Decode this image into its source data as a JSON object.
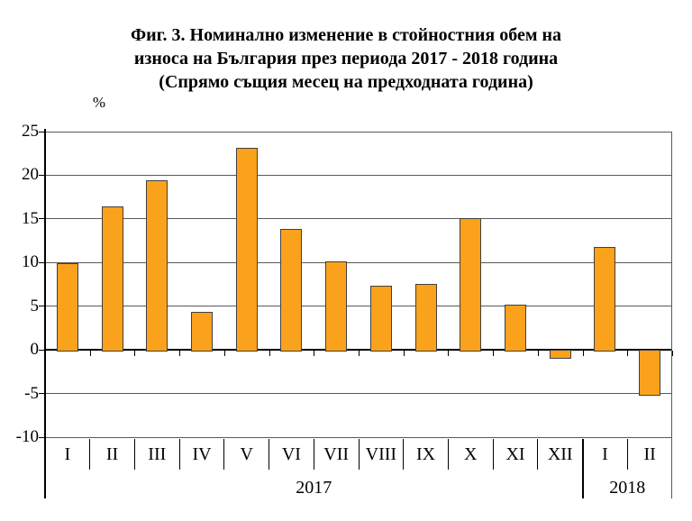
{
  "figure": {
    "title_lines": [
      "Фиг. 3. Номинално изменение в стойностния обем на",
      "износа на България през периода 2017 - 2018 година",
      "(Спрямо същия месец на предходната година)"
    ],
    "unit_label": "%"
  },
  "chart_data": {
    "type": "bar",
    "title": "Фиг. 3. Номинално изменение в стойностния обем на износа на България през периода 2017 - 2018 година (Спрямо същия месец на предходната година)",
    "xlabel": "",
    "ylabel": "%",
    "ylim": [
      -10,
      25
    ],
    "yticks": [
      25,
      20,
      15,
      10,
      5,
      0,
      -5,
      -10
    ],
    "grid": true,
    "legend": "none",
    "categories": [
      "I",
      "II",
      "III",
      "IV",
      "V",
      "VI",
      "VII",
      "VIII",
      "IX",
      "X",
      "XI",
      "XII",
      "I",
      "II"
    ],
    "values": [
      9.9,
      16.4,
      19.4,
      4.3,
      23.1,
      13.8,
      10.1,
      7.3,
      7.6,
      15.1,
      5.2,
      -1.0,
      11.8,
      -5.3
    ],
    "year_groups": [
      {
        "label": "2017",
        "start_index": 0,
        "count": 12
      },
      {
        "label": "2018",
        "start_index": 12,
        "count": 2
      }
    ],
    "bar_color": "#FAA21B",
    "bar_border_color": "#404040",
    "gridline_color": "#595959",
    "axis_color": "#000000"
  }
}
